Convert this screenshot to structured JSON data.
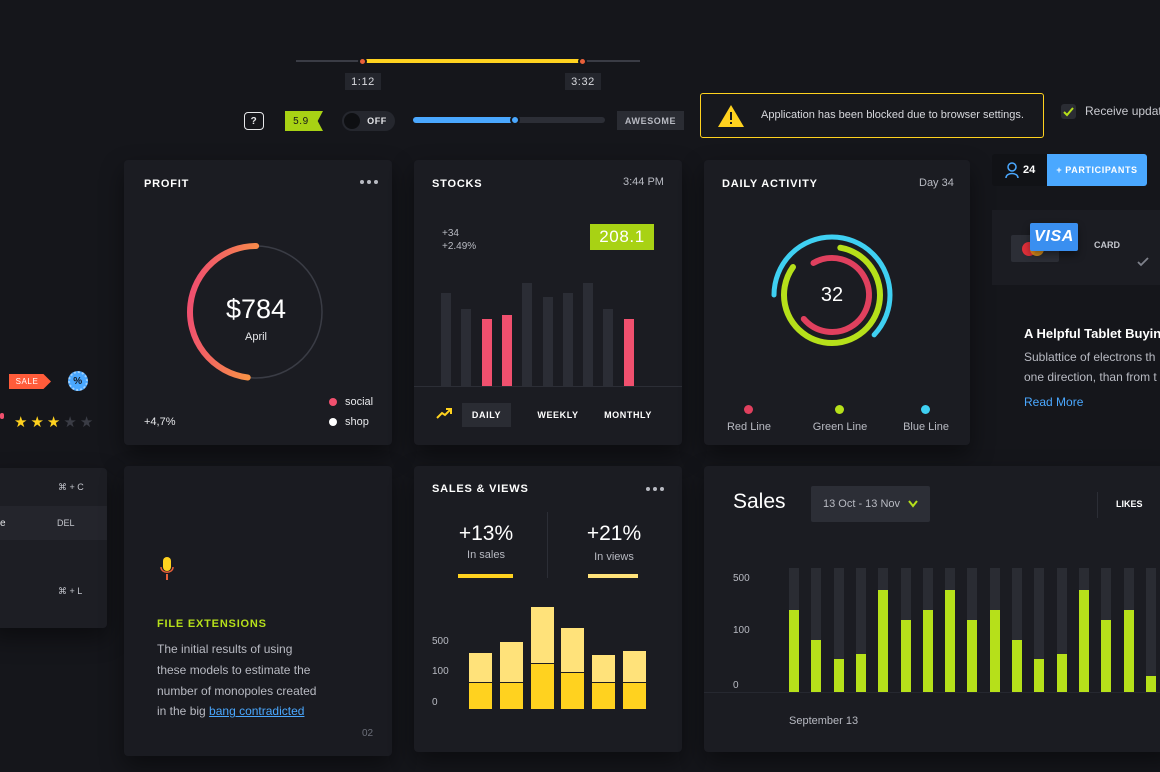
{
  "colors": {
    "bg": "#15161b",
    "card": "#1b1c22",
    "yellow": "#ffd21f",
    "lime": "#b6e01a",
    "pink": "#f0506e",
    "blue": "#4aa8ff",
    "cyan": "#3fd0f2",
    "orange": "#ff6a3d",
    "gray": "#2b2d35"
  },
  "top": {
    "range": {
      "start": "1:12",
      "end": "3:32"
    },
    "help": "?",
    "rating_flag": "5.9",
    "toggle": "OFF",
    "slider_level": 0.53,
    "awesome": "AWESOME",
    "alert": "Application has been blocked  due to browser settings.",
    "receive": "Receive updat"
  },
  "left": {
    "sale": "SALE",
    "percent": "%",
    "stars": 3,
    "stars_total": 5,
    "shortcuts": [
      {
        "label": "",
        "key": "⌘ + C"
      },
      {
        "label": "e",
        "key": "DEL"
      },
      {
        "label": "",
        "key": "⌘ + L"
      }
    ]
  },
  "profit": {
    "title": "PROFIT",
    "amount": "$784",
    "month": "April",
    "change": "+4,7%",
    "legend": [
      {
        "label": "social",
        "color": "#f0506e"
      },
      {
        "label": "shop",
        "color": "#ffffff"
      }
    ],
    "ring_fraction": 0.48
  },
  "stocks": {
    "title": "STOCKS",
    "time": "3:44 PM",
    "delta_abs": "+34",
    "delta_pct": "+2.49%",
    "price": "208.1",
    "tabs": [
      "DAILY",
      "WEEKLY",
      "MONTHLY"
    ],
    "active_tab": 0
  },
  "activity": {
    "title": "DAILY ACTIVITY",
    "day": "Day 34",
    "center": "32",
    "legend": [
      {
        "label": "Red Line",
        "color": "#e0405e"
      },
      {
        "label": "Green Line",
        "color": "#b6e01a"
      },
      {
        "label": "Blue Line",
        "color": "#3fd0f2"
      }
    ]
  },
  "participants": {
    "count": "24",
    "button": "+ PARTICIPANTS"
  },
  "card_select": {
    "brand": "VISA",
    "label": "CARD"
  },
  "article": {
    "heading": "A Helpful Tablet Buying",
    "line1": "Sublattice of electrons th",
    "line2": "one direction, than from t",
    "link": "Read More"
  },
  "file_ext": {
    "title": "FILE EXTENSIONS",
    "lines": [
      "The initial results of using",
      "these models to estimate the",
      "number of monopoles created"
    ],
    "line4_prefix": "in the big ",
    "line4_link": "bang contradicted",
    "page": "02"
  },
  "sales_views": {
    "title": "SALES & VIEWS",
    "sales_pct": "+13%",
    "sales_label": "In sales",
    "views_pct": "+21%",
    "views_label": "In views",
    "yticks": [
      "500",
      "100",
      "0"
    ]
  },
  "sales": {
    "title": "Sales",
    "range": "13 Oct - 13 Nov",
    "likes": "LIKES",
    "yticks": [
      "500",
      "100",
      "0"
    ],
    "xlabel": "September 13"
  },
  "chart_data": [
    {
      "type": "bar",
      "name": "stocks",
      "values": [
        100,
        82,
        72,
        76,
        110,
        95,
        100,
        110,
        82,
        72
      ],
      "highlight": [
        2,
        3,
        9
      ],
      "ylim": [
        0,
        120
      ]
    },
    {
      "type": "bar",
      "name": "sales-views",
      "categories": [
        "1",
        "2",
        "3",
        "4",
        "5",
        "6"
      ],
      "series": [
        {
          "values": [
            28,
            28,
            48,
            38,
            28,
            28
          ]
        },
        {
          "values": [
            30,
            42,
            58,
            46,
            28,
            32
          ]
        }
      ],
      "ylim": [
        0,
        110
      ]
    },
    {
      "type": "bar",
      "name": "sales",
      "max": [
        125,
        125,
        125,
        125,
        125,
        125,
        125,
        125,
        125,
        125,
        125,
        125,
        125,
        125,
        125,
        125,
        125,
        125
      ],
      "values": [
        83,
        52,
        33,
        38,
        103,
        73,
        83,
        103,
        73,
        83,
        52,
        33,
        38,
        103,
        73,
        83,
        16,
        18
      ],
      "ylim": [
        0,
        125
      ]
    },
    {
      "type": "pie",
      "name": "daily-activity",
      "series": [
        {
          "name": "Red Line",
          "value": 0.72
        },
        {
          "name": "Green Line",
          "value": 0.82
        },
        {
          "name": "Blue Line",
          "value": 0.62
        }
      ]
    }
  ]
}
